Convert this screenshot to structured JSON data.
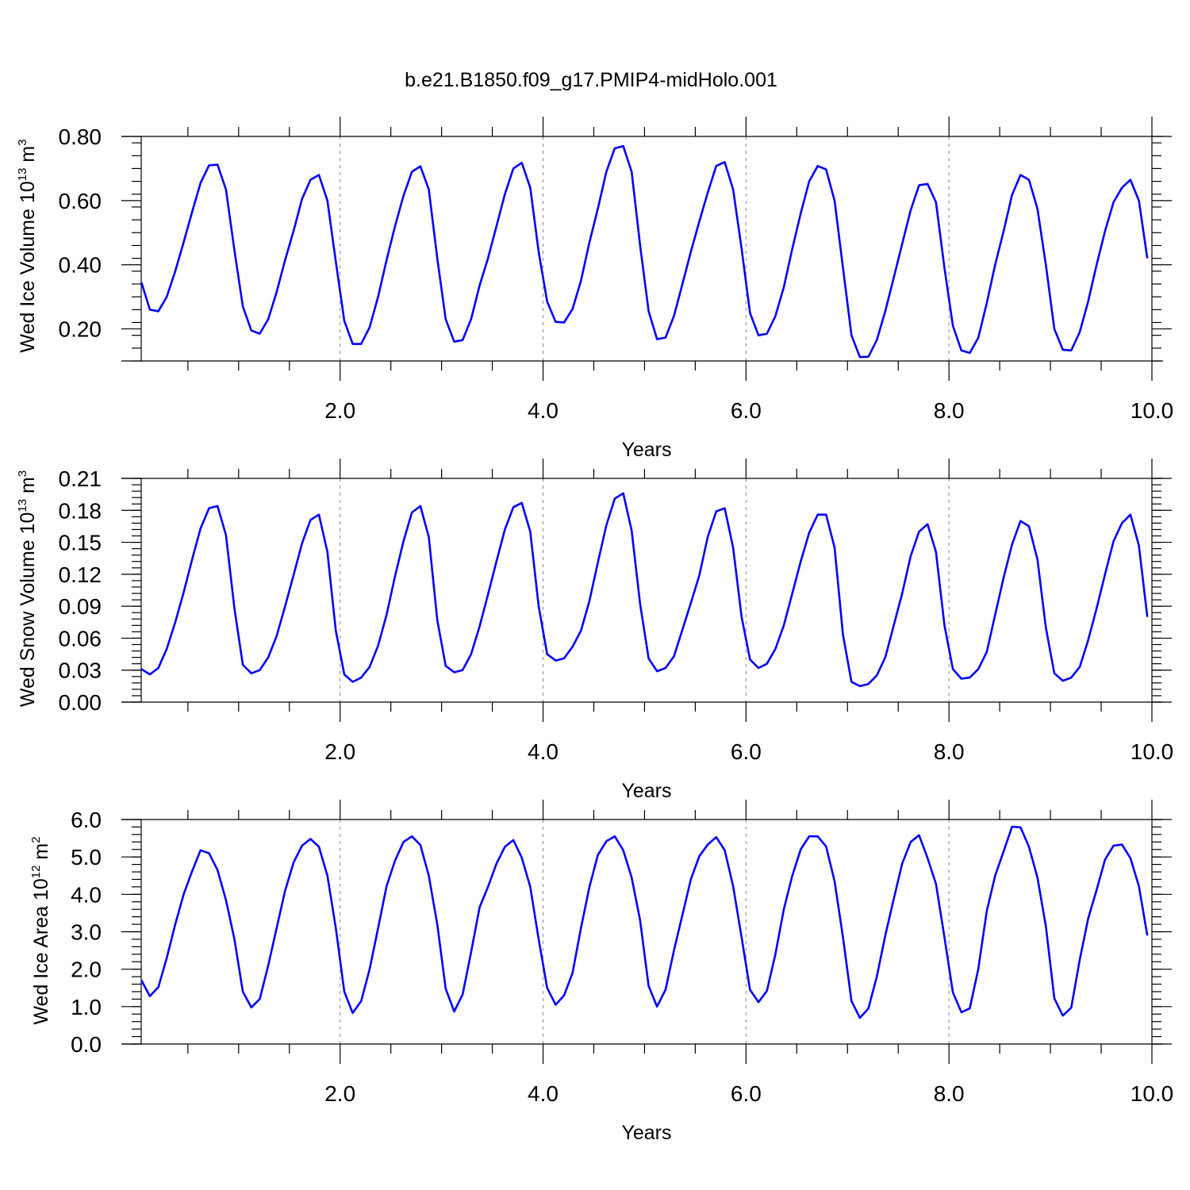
{
  "figure_title": "b.e21.B1850.f09_g17.PMIP4-midHolo.001",
  "colors": {
    "series": "#0000ff",
    "axis": "#000000",
    "grid": "#888888"
  },
  "chart_data": [
    {
      "type": "line",
      "xlabel": "Years",
      "ylabel": "Wed Ice Volume 10",
      "ylabel_exp": "13",
      "ylabel_unit": " m",
      "ylabel_unit_exp": "3",
      "xlim": [
        0.04,
        10.0
      ],
      "ylim": [
        0.1,
        0.8
      ],
      "x_ticks": [
        2.0,
        4.0,
        6.0,
        8.0,
        10.0
      ],
      "x_tick_labels": [
        "2.0",
        "4.0",
        "6.0",
        "8.0",
        "10.0"
      ],
      "y_ticks": [
        0.2,
        0.4,
        0.6,
        0.8
      ],
      "y_tick_labels": [
        "0.20",
        "0.40",
        "0.60",
        "0.80"
      ],
      "vgrid": [
        2.0,
        4.0,
        6.0,
        8.0
      ],
      "x_start": 0.042,
      "x_step": 0.0833,
      "values": [
        0.345,
        0.26,
        0.255,
        0.3,
        0.38,
        0.47,
        0.565,
        0.655,
        0.71,
        0.712,
        0.635,
        0.445,
        0.27,
        0.195,
        0.185,
        0.23,
        0.315,
        0.415,
        0.505,
        0.605,
        0.665,
        0.68,
        0.6,
        0.41,
        0.225,
        0.153,
        0.153,
        0.205,
        0.3,
        0.415,
        0.52,
        0.615,
        0.69,
        0.707,
        0.635,
        0.42,
        0.23,
        0.16,
        0.165,
        0.23,
        0.335,
        0.42,
        0.52,
        0.62,
        0.7,
        0.718,
        0.64,
        0.44,
        0.285,
        0.222,
        0.22,
        0.262,
        0.35,
        0.47,
        0.575,
        0.69,
        0.763,
        0.77,
        0.69,
        0.46,
        0.255,
        0.168,
        0.173,
        0.24,
        0.34,
        0.44,
        0.535,
        0.625,
        0.708,
        0.72,
        0.635,
        0.45,
        0.25,
        0.18,
        0.185,
        0.24,
        0.33,
        0.45,
        0.56,
        0.66,
        0.708,
        0.697,
        0.6,
        0.39,
        0.18,
        0.112,
        0.113,
        0.165,
        0.255,
        0.36,
        0.465,
        0.57,
        0.648,
        0.652,
        0.595,
        0.39,
        0.21,
        0.133,
        0.125,
        0.172,
        0.28,
        0.4,
        0.505,
        0.618,
        0.68,
        0.665,
        0.575,
        0.4,
        0.2,
        0.135,
        0.133,
        0.19,
        0.285,
        0.4,
        0.505,
        0.595,
        0.64,
        0.665,
        0.6,
        0.42
      ]
    },
    {
      "type": "line",
      "xlabel": "Years",
      "ylabel": "Wed Snow Volume 10",
      "ylabel_exp": "13",
      "ylabel_unit": " m",
      "ylabel_unit_exp": "3",
      "xlim": [
        0.04,
        10.0
      ],
      "ylim": [
        0.0,
        0.21
      ],
      "x_ticks": [
        2.0,
        4.0,
        6.0,
        8.0,
        10.0
      ],
      "x_tick_labels": [
        "2.0",
        "4.0",
        "6.0",
        "8.0",
        "10.0"
      ],
      "y_ticks": [
        0.0,
        0.03,
        0.06,
        0.09,
        0.12,
        0.15,
        0.18,
        0.21
      ],
      "y_tick_labels": [
        "0.00",
        "0.03",
        "0.06",
        "0.09",
        "0.12",
        "0.15",
        "0.18",
        "0.21"
      ],
      "vgrid": [
        2.0,
        4.0,
        6.0,
        8.0
      ],
      "x_start": 0.042,
      "x_step": 0.0833,
      "values": [
        0.031,
        0.026,
        0.032,
        0.05,
        0.075,
        0.103,
        0.134,
        0.163,
        0.182,
        0.184,
        0.157,
        0.088,
        0.035,
        0.027,
        0.03,
        0.042,
        0.062,
        0.09,
        0.119,
        0.149,
        0.171,
        0.176,
        0.141,
        0.067,
        0.026,
        0.019,
        0.023,
        0.033,
        0.053,
        0.082,
        0.118,
        0.151,
        0.178,
        0.184,
        0.155,
        0.077,
        0.034,
        0.028,
        0.03,
        0.045,
        0.071,
        0.101,
        0.132,
        0.162,
        0.183,
        0.187,
        0.16,
        0.09,
        0.045,
        0.039,
        0.041,
        0.052,
        0.067,
        0.095,
        0.131,
        0.166,
        0.191,
        0.196,
        0.161,
        0.092,
        0.041,
        0.029,
        0.032,
        0.043,
        0.068,
        0.093,
        0.119,
        0.155,
        0.179,
        0.182,
        0.145,
        0.08,
        0.04,
        0.032,
        0.036,
        0.05,
        0.072,
        0.102,
        0.132,
        0.159,
        0.176,
        0.176,
        0.145,
        0.063,
        0.019,
        0.015,
        0.017,
        0.025,
        0.042,
        0.072,
        0.102,
        0.137,
        0.16,
        0.167,
        0.141,
        0.072,
        0.031,
        0.022,
        0.023,
        0.031,
        0.047,
        0.082,
        0.117,
        0.148,
        0.17,
        0.165,
        0.134,
        0.07,
        0.027,
        0.02,
        0.023,
        0.033,
        0.058,
        0.088,
        0.12,
        0.151,
        0.168,
        0.176,
        0.147,
        0.08
      ]
    },
    {
      "type": "line",
      "xlabel": "Years",
      "ylabel": "Wed Ice Area 10",
      "ylabel_exp": "12",
      "ylabel_unit": " m",
      "ylabel_unit_exp": "2",
      "xlim": [
        0.04,
        10.0
      ],
      "ylim": [
        0.0,
        6.0
      ],
      "x_ticks": [
        2.0,
        4.0,
        6.0,
        8.0,
        10.0
      ],
      "x_tick_labels": [
        "2.0",
        "4.0",
        "6.0",
        "8.0",
        "10.0"
      ],
      "y_ticks": [
        0.0,
        1.0,
        2.0,
        3.0,
        4.0,
        5.0,
        6.0
      ],
      "y_tick_labels": [
        "0.0",
        "1.0",
        "2.0",
        "3.0",
        "4.0",
        "5.0",
        "6.0"
      ],
      "vgrid": [
        2.0,
        4.0,
        6.0,
        8.0
      ],
      "x_start": 0.042,
      "x_step": 0.0833,
      "values": [
        1.7,
        1.28,
        1.52,
        2.3,
        3.2,
        4.0,
        4.62,
        5.18,
        5.1,
        4.65,
        3.85,
        2.8,
        1.4,
        0.98,
        1.2,
        2.1,
        3.1,
        4.1,
        4.85,
        5.3,
        5.48,
        5.27,
        4.5,
        3.1,
        1.4,
        0.83,
        1.15,
        2.0,
        3.1,
        4.22,
        4.9,
        5.4,
        5.55,
        5.32,
        4.5,
        3.2,
        1.48,
        0.87,
        1.32,
        2.45,
        3.65,
        4.2,
        4.82,
        5.27,
        5.45,
        4.98,
        4.2,
        2.8,
        1.5,
        1.05,
        1.3,
        1.9,
        3.1,
        4.2,
        5.05,
        5.42,
        5.55,
        5.18,
        4.45,
        3.3,
        1.55,
        1.0,
        1.45,
        2.5,
        3.45,
        4.4,
        5.02,
        5.33,
        5.53,
        5.18,
        4.22,
        2.85,
        1.45,
        1.12,
        1.42,
        2.4,
        3.6,
        4.5,
        5.2,
        5.55,
        5.55,
        5.28,
        4.35,
        2.85,
        1.15,
        0.7,
        0.95,
        1.8,
        2.9,
        3.88,
        4.82,
        5.4,
        5.58,
        4.97,
        4.28,
        2.85,
        1.38,
        0.85,
        0.95,
        2.0,
        3.55,
        4.5,
        5.15,
        5.81,
        5.79,
        5.27,
        4.45,
        3.15,
        1.22,
        0.76,
        0.97,
        2.25,
        3.35,
        4.12,
        4.93,
        5.3,
        5.33,
        4.97,
        4.22,
        2.9
      ]
    }
  ]
}
